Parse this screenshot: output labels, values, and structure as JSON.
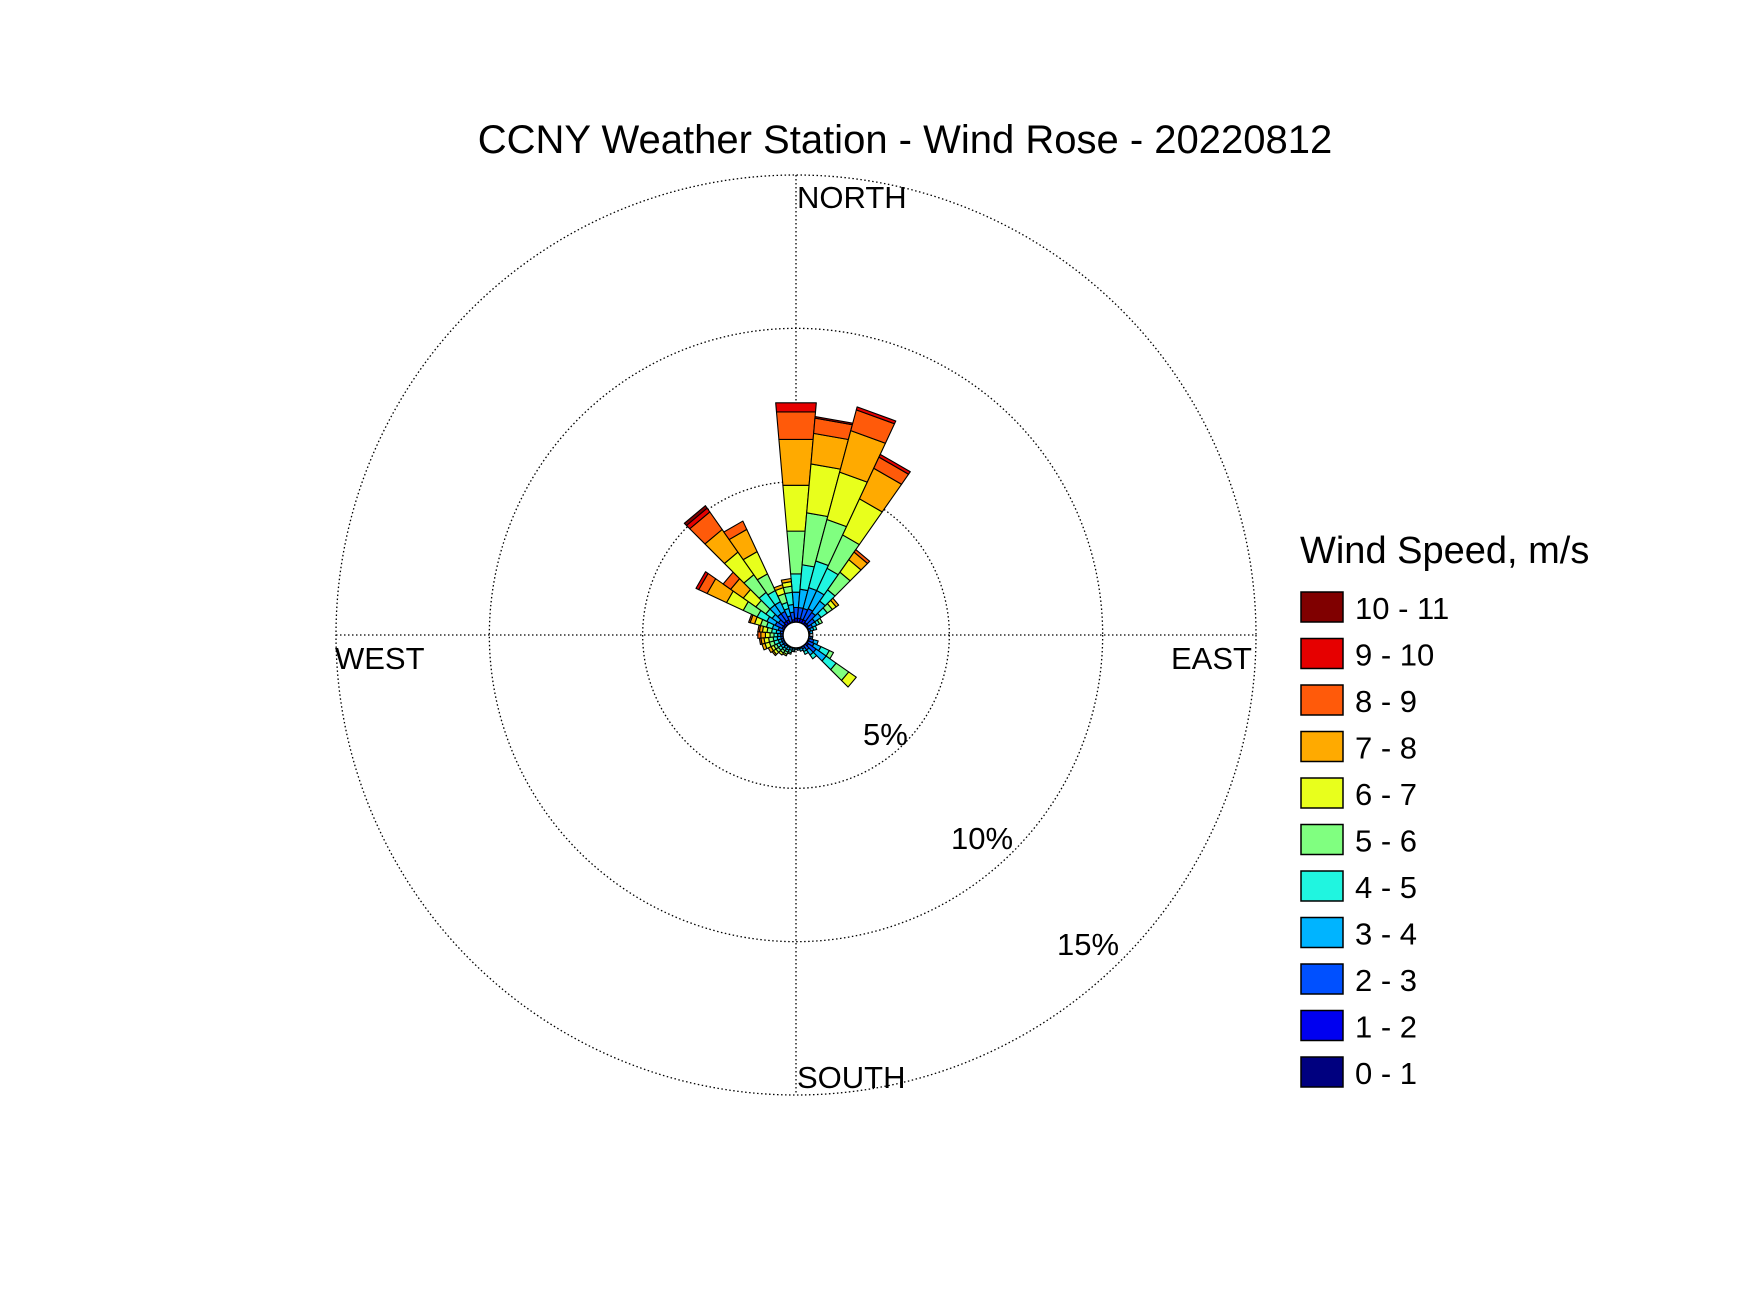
{
  "chart_data": {
    "type": "wind-rose",
    "title": "CCNY Weather Station - Wind Rose - 20220812",
    "direction_labels": {
      "north": "NORTH",
      "east": "EAST",
      "south": "SOUTH",
      "west": "WEST"
    },
    "radial_unit": "%",
    "radial_ticks": [
      {
        "value": 5,
        "label": "5%"
      },
      {
        "value": 10,
        "label": "10%"
      },
      {
        "value": 15,
        "label": "15%"
      }
    ],
    "radial_max": 15,
    "legend": {
      "title": "Wind Speed, m/s",
      "placement": "right",
      "bins": [
        {
          "label": "10 - 11",
          "color": "#800000"
        },
        {
          "label": "9 - 10",
          "color": "#e60000"
        },
        {
          "label": "8 - 9",
          "color": "#ff5a0a"
        },
        {
          "label": "7 - 8",
          "color": "#ffaa00"
        },
        {
          "label": "6 - 7",
          "color": "#e8ff1c"
        },
        {
          "label": "5 - 6",
          "color": "#80ff80"
        },
        {
          "label": "4 - 5",
          "color": "#20f5e0"
        },
        {
          "label": "3 - 4",
          "color": "#00b4ff"
        },
        {
          "label": "2 - 3",
          "color": "#0050ff"
        },
        {
          "label": "1 - 2",
          "color": "#0000f0"
        },
        {
          "label": "0 - 1",
          "color": "#00007f"
        }
      ]
    },
    "bin_colors_low_to_high": [
      "#00007f",
      "#0000f0",
      "#0050ff",
      "#00b4ff",
      "#20f5e0",
      "#80ff80",
      "#e8ff1c",
      "#ffaa00",
      "#ff5a0a",
      "#e60000",
      "#800000"
    ],
    "sector_width_deg": 10,
    "sectors": [
      {
        "dir": 0,
        "cum": [
          0.3,
          0.55,
          0.9,
          1.4,
          2.0,
          3.4,
          4.9,
          6.4,
          7.3,
          7.6
        ]
      },
      {
        "dir": 10,
        "cum": [
          0.3,
          0.55,
          0.9,
          1.5,
          2.3,
          4.0,
          5.6,
          6.6,
          7.1,
          7.15
        ]
      },
      {
        "dir": 20,
        "cum": [
          0.3,
          0.55,
          0.9,
          1.6,
          2.5,
          3.9,
          5.5,
          6.9,
          7.6,
          7.7
        ]
      },
      {
        "dir": 30,
        "cum": [
          0.3,
          0.55,
          0.95,
          1.6,
          2.4,
          3.6,
          4.9,
          6.0,
          6.4,
          6.5
        ]
      },
      {
        "dir": 40,
        "cum": [
          0.3,
          0.5,
          0.9,
          1.35,
          1.8,
          2.5,
          3.0,
          3.3,
          3.4
        ]
      },
      {
        "dir": 50,
        "cum": [
          0.3,
          0.5,
          0.75,
          1.0,
          1.25,
          1.45,
          1.6,
          1.7
        ]
      },
      {
        "dir": 60,
        "cum": [
          0.3,
          0.45,
          0.6,
          0.75,
          0.85,
          0.95
        ]
      },
      {
        "dir": 70,
        "cum": [
          0.3,
          0.4,
          0.5,
          0.6,
          0.7
        ]
      },
      {
        "dir": 80,
        "cum": [
          0.3,
          0.38,
          0.46,
          0.55
        ]
      },
      {
        "dir": 90,
        "cum": [
          0.3,
          0.38,
          0.45
        ]
      },
      {
        "dir": 100,
        "cum": [
          0.3,
          0.4,
          0.5,
          0.55
        ]
      },
      {
        "dir": 110,
        "cum": [
          0.3,
          0.45,
          0.6,
          0.75
        ]
      },
      {
        "dir": 120,
        "cum": [
          0.3,
          0.45,
          0.65,
          0.9,
          1.2,
          1.35
        ]
      },
      {
        "dir": 130,
        "cum": [
          0.3,
          0.5,
          0.8,
          1.2,
          1.6,
          2.1,
          2.4
        ]
      },
      {
        "dir": 140,
        "cum": [
          0.3,
          0.4,
          0.6,
          0.8,
          0.95
        ]
      },
      {
        "dir": 150,
        "cum": [
          0.3,
          0.4,
          0.5,
          0.6,
          0.7
        ]
      },
      {
        "dir": 160,
        "cum": [
          0.3,
          0.38,
          0.46,
          0.55
        ]
      },
      {
        "dir": 170,
        "cum": [
          0.3,
          0.38,
          0.45,
          0.5
        ]
      },
      {
        "dir": 180,
        "cum": [
          0.3,
          0.37,
          0.43,
          0.48
        ]
      },
      {
        "dir": 190,
        "cum": [
          0.3,
          0.37,
          0.44,
          0.5,
          0.55
        ]
      },
      {
        "dir": 200,
        "cum": [
          0.3,
          0.38,
          0.45,
          0.52,
          0.6,
          0.65
        ]
      },
      {
        "dir": 210,
        "cum": [
          0.3,
          0.38,
          0.46,
          0.55,
          0.62,
          0.7,
          0.75
        ]
      },
      {
        "dir": 220,
        "cum": [
          0.3,
          0.38,
          0.46,
          0.55,
          0.63,
          0.72,
          0.8
        ]
      },
      {
        "dir": 230,
        "cum": [
          0.3,
          0.4,
          0.5,
          0.6,
          0.7,
          0.8,
          0.9,
          0.95
        ]
      },
      {
        "dir": 240,
        "cum": [
          0.3,
          0.4,
          0.5,
          0.6,
          0.7,
          0.8,
          0.9,
          1.0
        ]
      },
      {
        "dir": 250,
        "cum": [
          0.3,
          0.4,
          0.5,
          0.6,
          0.75,
          0.9,
          1.05,
          1.15
        ]
      },
      {
        "dir": 260,
        "cum": [
          0.3,
          0.4,
          0.5,
          0.62,
          0.75,
          0.9,
          1.05,
          1.15,
          1.2
        ]
      },
      {
        "dir": 270,
        "cum": [
          0.3,
          0.4,
          0.5,
          0.6,
          0.72,
          0.85,
          1.0,
          1.15,
          1.25
        ]
      },
      {
        "dir": 280,
        "cum": [
          0.3,
          0.4,
          0.52,
          0.65,
          0.8,
          0.95,
          1.1,
          1.2,
          1.25
        ]
      },
      {
        "dir": 290,
        "cum": [
          0.3,
          0.45,
          0.6,
          0.8,
          1.0,
          1.2,
          1.4,
          1.55,
          1.6
        ]
      },
      {
        "dir": 300,
        "cum": [
          0.3,
          0.5,
          0.75,
          1.05,
          1.4,
          1.9,
          2.5,
          3.2,
          3.5,
          3.6
        ]
      },
      {
        "dir": 310,
        "cum": [
          0.3,
          0.5,
          0.7,
          0.95,
          1.2,
          1.6,
          2.1,
          2.6,
          2.9
        ]
      },
      {
        "dir": 320,
        "cum": [
          0.3,
          0.55,
          0.85,
          1.2,
          1.7,
          2.4,
          3.3,
          4.2,
          4.9,
          5.05,
          5.15
        ]
      },
      {
        "dir": 330,
        "cum": [
          0.3,
          0.55,
          0.85,
          1.2,
          1.6,
          2.2,
          3.0,
          3.8,
          4.1
        ]
      },
      {
        "dir": 340,
        "cum": [
          0.3,
          0.45,
          0.65,
          0.9,
          1.1,
          1.4,
          1.6,
          1.7
        ]
      },
      {
        "dir": 350,
        "cum": [
          0.3,
          0.5,
          0.75,
          1.0,
          1.4,
          1.6,
          1.75,
          1.85
        ]
      }
    ]
  }
}
